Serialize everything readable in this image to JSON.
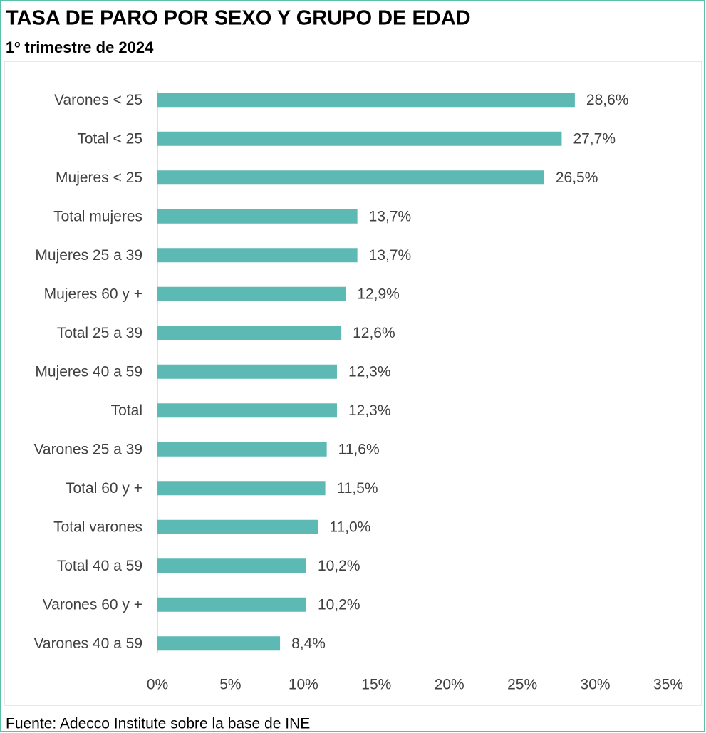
{
  "chart_data": {
    "type": "barh",
    "title": "TASA DE PARO POR SEXO Y GRUPO DE EDAD",
    "subtitle": "1º trimestre de 2024",
    "source": "Fuente: Adecco Institute sobre la base de INE",
    "categories": [
      "Varones < 25",
      "Total < 25",
      "Mujeres < 25",
      "Total mujeres",
      "Mujeres 25 a 39",
      "Mujeres 60 y +",
      "Total 25 a 39",
      "Mujeres 40 a 59",
      "Total",
      "Varones 25 a 39",
      "Total 60 y +",
      "Total varones",
      "Total 40 a 59",
      "Varones 60 y +",
      "Varones 40 a 59"
    ],
    "values": [
      28.6,
      27.7,
      26.5,
      13.7,
      13.7,
      12.9,
      12.6,
      12.3,
      12.3,
      11.6,
      11.5,
      11.0,
      10.2,
      10.2,
      8.4
    ],
    "value_labels": [
      "28,6%",
      "27,7%",
      "26,5%",
      "13,7%",
      "13,7%",
      "12,9%",
      "12,6%",
      "12,3%",
      "12,3%",
      "11,6%",
      "11,5%",
      "11,0%",
      "10,2%",
      "10,2%",
      "8,4%"
    ],
    "color": "#5db9b3",
    "xlim": [
      0,
      35
    ],
    "xticks": [
      {
        "value": 0,
        "label": "0%"
      },
      {
        "value": 5,
        "label": "5%"
      },
      {
        "value": 10,
        "label": "10%"
      },
      {
        "value": 15,
        "label": "15%"
      },
      {
        "value": 20,
        "label": "20%"
      },
      {
        "value": 25,
        "label": "25%"
      },
      {
        "value": 30,
        "label": "30%"
      },
      {
        "value": 35,
        "label": "35%"
      }
    ],
    "grid": false
  }
}
